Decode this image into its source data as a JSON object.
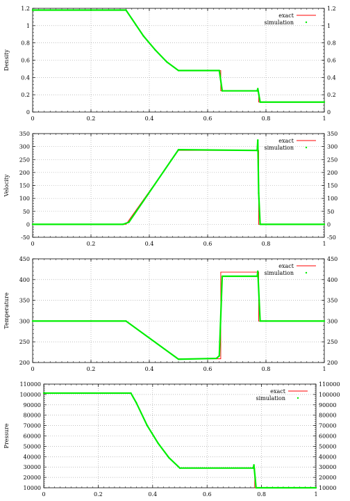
{
  "chart_data": [
    {
      "type": "line",
      "ylabel": "Density",
      "xlim": [
        0,
        1
      ],
      "ylim": [
        0,
        1.2
      ],
      "xticks": [
        0,
        0.2,
        0.4,
        0.6,
        0.8,
        1
      ],
      "xtick_labels": [
        "0",
        "0.2",
        "0.4",
        "0.6",
        "0.8",
        "1"
      ],
      "yticks": [
        0,
        0.2,
        0.4,
        0.6,
        0.8,
        1,
        1.2
      ],
      "ytick_labels": [
        "0",
        "0.2",
        "0.4",
        "0.6",
        "0.8",
        "1",
        "1.2"
      ],
      "right_ytick_labels": true,
      "grid": true,
      "legend_position": "top-right",
      "series": [
        {
          "name": "exact",
          "style": "line",
          "color": "#ff0000",
          "x": [
            0,
            0.32,
            0.34,
            0.38,
            0.42,
            0.46,
            0.5,
            0.645,
            0.645,
            0.775,
            0.775,
            1
          ],
          "y": [
            1.18,
            1.18,
            1.08,
            0.88,
            0.72,
            0.58,
            0.48,
            0.48,
            0.245,
            0.245,
            0.115,
            0.115
          ]
        },
        {
          "name": "simulation",
          "style": "points",
          "color": "#00ee00",
          "x": [
            0,
            0.32,
            0.34,
            0.38,
            0.42,
            0.46,
            0.5,
            0.64,
            0.65,
            0.77,
            0.772,
            0.78,
            1
          ],
          "y": [
            1.18,
            1.18,
            1.08,
            0.88,
            0.72,
            0.58,
            0.48,
            0.48,
            0.245,
            0.245,
            0.27,
            0.115,
            0.115
          ]
        }
      ]
    },
    {
      "type": "line",
      "ylabel": "Velocity",
      "xlim": [
        0,
        1
      ],
      "ylim": [
        -50,
        350
      ],
      "xticks": [
        0,
        0.2,
        0.4,
        0.6,
        0.8,
        1
      ],
      "xtick_labels": [
        "0",
        "0.2",
        "0.4",
        "0.6",
        "0.8",
        "1"
      ],
      "yticks": [
        -50,
        0,
        50,
        100,
        150,
        200,
        250,
        300,
        350
      ],
      "ytick_labels": [
        "-50",
        "0",
        "50",
        "100",
        "150",
        "200",
        "250",
        "300",
        "350"
      ],
      "right_ytick_labels": true,
      "grid": true,
      "legend_position": "top-right",
      "series": [
        {
          "name": "exact",
          "style": "line",
          "color": "#ff0000",
          "x": [
            0,
            0.32,
            0.5,
            0.775,
            0.775,
            1
          ],
          "y": [
            0,
            0,
            285,
            285,
            0,
            0
          ]
        },
        {
          "name": "simulation",
          "style": "points",
          "color": "#00ee00",
          "x": [
            0,
            0.31,
            0.33,
            0.5,
            0.77,
            0.772,
            0.775,
            0.78,
            1
          ],
          "y": [
            0,
            0,
            8,
            288,
            285,
            325,
            120,
            0,
            0
          ]
        }
      ]
    },
    {
      "type": "line",
      "ylabel": "Temperature",
      "xlim": [
        0,
        1
      ],
      "ylim": [
        200,
        450
      ],
      "xticks": [
        0,
        0.2,
        0.4,
        0.6,
        0.8,
        1
      ],
      "xtick_labels": [
        "0",
        "0.2",
        "0.4",
        "0.6",
        "0.8",
        "1"
      ],
      "yticks": [
        200,
        250,
        300,
        350,
        400,
        450
      ],
      "ytick_labels": [
        "200",
        "250",
        "300",
        "350",
        "400",
        "450"
      ],
      "right_ytick_labels": true,
      "grid": true,
      "legend_position": "top-right",
      "series": [
        {
          "name": "exact",
          "style": "line",
          "color": "#ff0000",
          "x": [
            0,
            0.32,
            0.5,
            0.645,
            0.645,
            0.775,
            0.775,
            1
          ],
          "y": [
            300,
            300,
            209,
            209,
            418,
            418,
            300,
            300
          ]
        },
        {
          "name": "simulation",
          "style": "points",
          "color": "#00ee00",
          "x": [
            0,
            0.32,
            0.5,
            0.63,
            0.64,
            0.65,
            0.77,
            0.772,
            0.78,
            1
          ],
          "y": [
            300,
            300,
            208,
            210,
            216,
            408,
            408,
            420,
            300,
            300
          ]
        }
      ]
    },
    {
      "type": "line",
      "ylabel": "Pressure",
      "xlim": [
        0,
        1
      ],
      "ylim": [
        10000,
        110000
      ],
      "xticks": [
        0,
        0.2,
        0.4,
        0.6,
        0.8,
        1
      ],
      "xtick_labels": [
        "0",
        "0.2",
        "0.4",
        "0.6",
        "0.8",
        "1"
      ],
      "yticks": [
        10000,
        20000,
        30000,
        40000,
        50000,
        60000,
        70000,
        80000,
        90000,
        100000,
        110000
      ],
      "ytick_labels": [
        "10000",
        "20000",
        "30000",
        "40000",
        "50000",
        "60000",
        "70000",
        "80000",
        "90000",
        "100000",
        "110000"
      ],
      "right_ytick_labels": true,
      "grid": true,
      "legend_position": "top-right",
      "series": [
        {
          "name": "exact",
          "style": "line",
          "color": "#ff0000",
          "x": [
            0,
            0.32,
            0.34,
            0.38,
            0.42,
            0.46,
            0.5,
            0.775,
            0.775,
            1
          ],
          "y": [
            101325,
            101325,
            92000,
            70000,
            53000,
            39000,
            29000,
            29000,
            10000,
            10000
          ]
        },
        {
          "name": "simulation",
          "style": "points",
          "color": "#00ee00",
          "x": [
            0,
            0.32,
            0.34,
            0.38,
            0.42,
            0.46,
            0.5,
            0.77,
            0.772,
            0.78,
            1
          ],
          "y": [
            101325,
            101325,
            92000,
            70000,
            53000,
            39000,
            29000,
            29000,
            32000,
            10000,
            10000
          ]
        }
      ]
    }
  ]
}
